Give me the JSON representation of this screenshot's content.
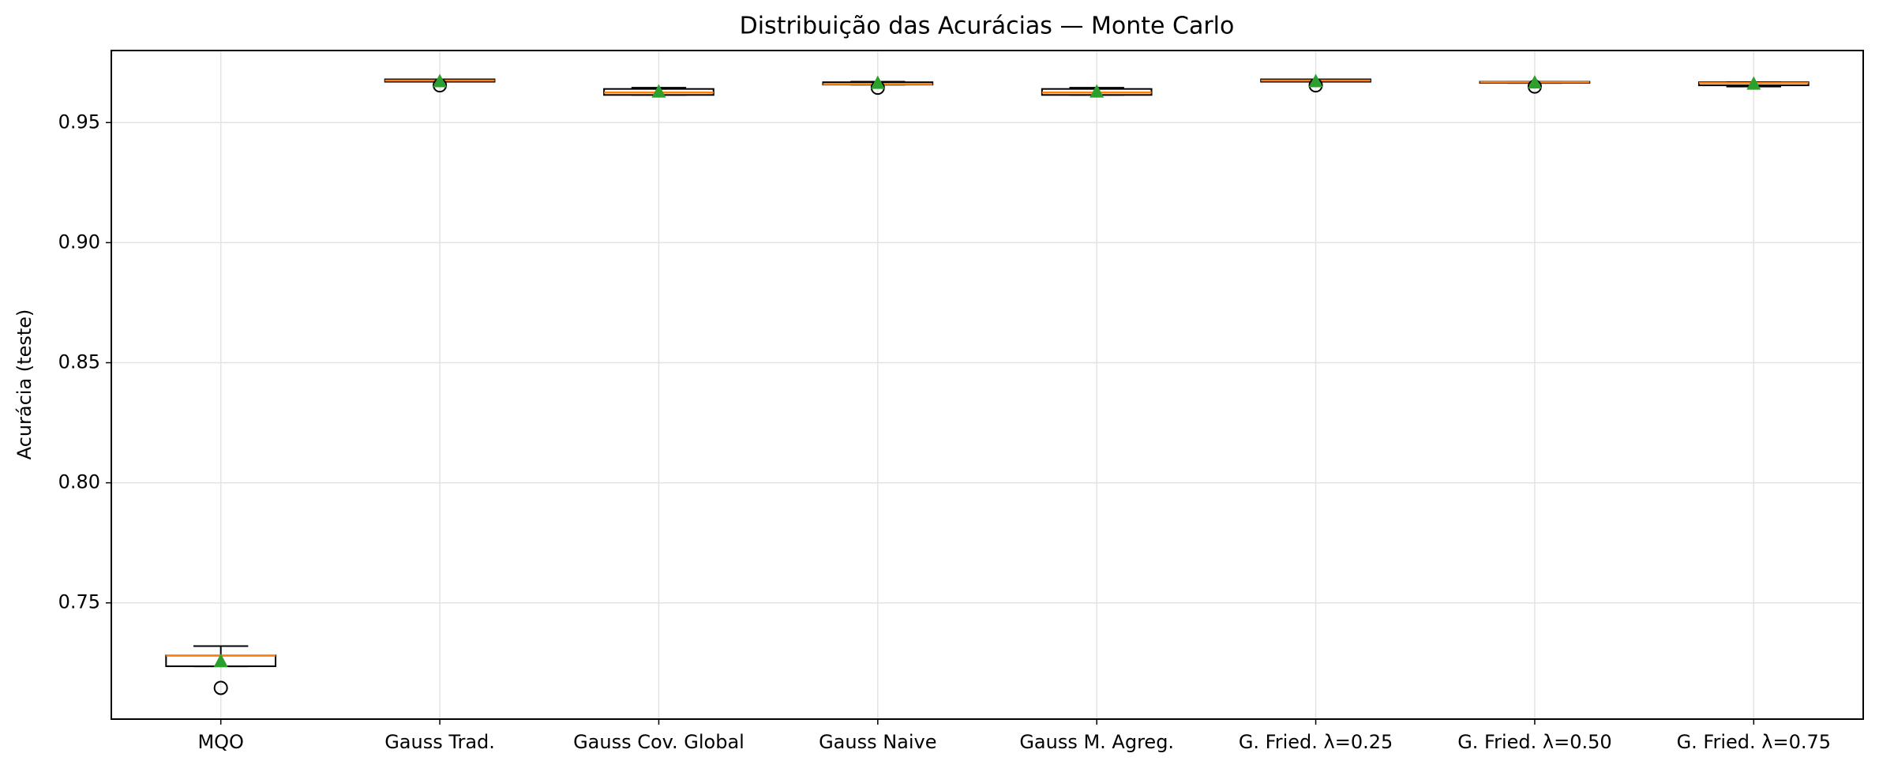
{
  "chart_data": {
    "type": "box",
    "title": "Distribuição das Acurácias — Monte Carlo",
    "y_label": "Acurácia (teste)",
    "categories": [
      "MQO",
      "Gauss Trad.",
      "Gauss Cov. Global",
      "Gauss Naive",
      "Gauss M. Agreg.",
      "G. Fried. λ=0.25",
      "G. Fried. λ=0.50",
      "G. Fried. λ=0.75"
    ],
    "boxes": [
      {
        "whislo": 0.7236,
        "q1": 0.7236,
        "med": 0.728,
        "q3": 0.7281,
        "whishi": 0.732,
        "mean": 0.7256,
        "fliers": [
          0.7146
        ]
      },
      {
        "whislo": 0.967,
        "q1": 0.967,
        "med": 0.9675,
        "q3": 0.968,
        "whishi": 0.968,
        "mean": 0.967,
        "fliers": [
          0.9655
        ]
      },
      {
        "whislo": 0.9615,
        "q1": 0.9615,
        "med": 0.9625,
        "q3": 0.964,
        "whishi": 0.9645,
        "mean": 0.9627,
        "fliers": []
      },
      {
        "whislo": 0.9658,
        "q1": 0.9658,
        "med": 0.966,
        "q3": 0.9668,
        "whishi": 0.967,
        "mean": 0.9663,
        "fliers": [
          0.9645
        ]
      },
      {
        "whislo": 0.9615,
        "q1": 0.9615,
        "med": 0.9625,
        "q3": 0.964,
        "whishi": 0.9645,
        "mean": 0.9627,
        "fliers": []
      },
      {
        "whislo": 0.967,
        "q1": 0.967,
        "med": 0.9675,
        "q3": 0.968,
        "whishi": 0.968,
        "mean": 0.967,
        "fliers": [
          0.9655
        ]
      },
      {
        "whislo": 0.9665,
        "q1": 0.9665,
        "med": 0.9668,
        "q3": 0.967,
        "whishi": 0.967,
        "mean": 0.9665,
        "fliers": [
          0.965
        ]
      },
      {
        "whislo": 0.965,
        "q1": 0.9655,
        "med": 0.9665,
        "q3": 0.9668,
        "whishi": 0.9668,
        "mean": 0.966,
        "fliers": []
      }
    ],
    "box_color": "#000000",
    "median_color": "#ff7f0e",
    "mean_color": "#2ca02c",
    "ylim": [
      0.7016,
      0.98
    ],
    "yticks": [
      0.75,
      {
        "value": 0.8,
        "label": "0.80"
      },
      0.85,
      {
        "value": 0.9,
        "label": "0.90"
      },
      0.95
    ],
    "grid": true
  }
}
